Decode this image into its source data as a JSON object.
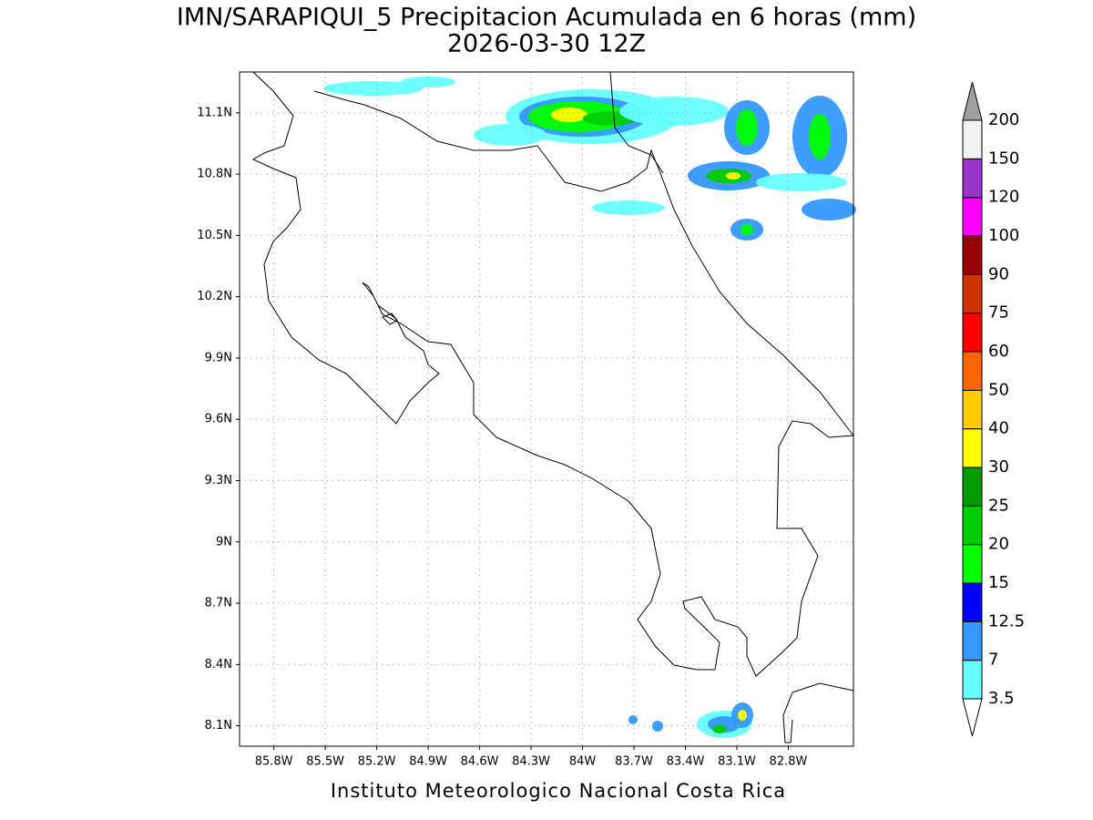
{
  "map": {
    "title": "IMN/SARAPIQUI_5 Precipitacion Acumulada en 6 horas (mm)",
    "subtitle": "2026-03-30 12Z",
    "footer": "Instituto Meteorologico Nacional Costa Rica",
    "xlim": [
      -86.0,
      -82.42
    ],
    "ylim": [
      8.0,
      11.3
    ],
    "xticks": [
      {
        "value": -85.8,
        "label": "85.8W"
      },
      {
        "value": -85.5,
        "label": "85.5W"
      },
      {
        "value": -85.2,
        "label": "85.2W"
      },
      {
        "value": -84.9,
        "label": "84.9W"
      },
      {
        "value": -84.6,
        "label": "84.6W"
      },
      {
        "value": -84.3,
        "label": "84.3W"
      },
      {
        "value": -84.0,
        "label": "84W"
      },
      {
        "value": -83.7,
        "label": "83.7W"
      },
      {
        "value": -83.4,
        "label": "83.4W"
      },
      {
        "value": -83.1,
        "label": "83.1W"
      },
      {
        "value": -82.8,
        "label": "82.8W"
      }
    ],
    "yticks": [
      {
        "value": 8.1,
        "label": "8.1N"
      },
      {
        "value": 8.4,
        "label": "8.4N"
      },
      {
        "value": 8.7,
        "label": "8.7N"
      },
      {
        "value": 9.0,
        "label": "9N"
      },
      {
        "value": 9.3,
        "label": "9.3N"
      },
      {
        "value": 9.6,
        "label": "9.6N"
      },
      {
        "value": 9.9,
        "label": "9.9N"
      },
      {
        "value": 10.2,
        "label": "10.2N"
      },
      {
        "value": 10.5,
        "label": "10.5N"
      },
      {
        "value": 10.8,
        "label": "10.8N"
      },
      {
        "value": 11.1,
        "label": "11.1N"
      }
    ],
    "grid": true,
    "colorbar": {
      "levels": [
        3.5,
        7,
        12.5,
        15,
        20,
        25,
        30,
        40,
        50,
        60,
        75,
        90,
        100,
        120,
        150,
        200
      ],
      "colors": [
        "#ffffff",
        "#66ffff",
        "#3399ff",
        "#0000ff",
        "#00ff00",
        "#00cc00",
        "#009900",
        "#ffff00",
        "#ffcc00",
        "#ff6600",
        "#ff0000",
        "#cc3300",
        "#990000",
        "#ff00ff",
        "#9933cc",
        "#f2f2f2",
        "#a0a0a0"
      ]
    }
  }
}
